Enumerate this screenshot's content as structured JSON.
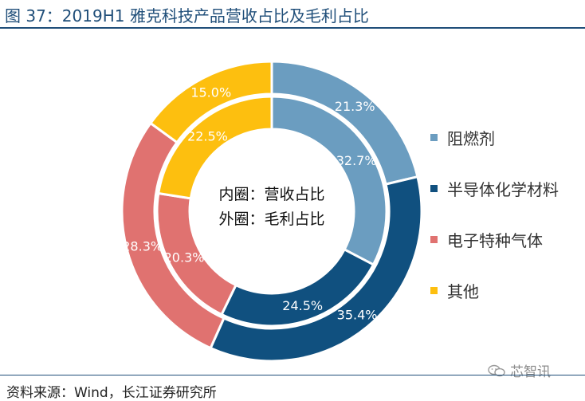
{
  "header": {
    "title": "图 37：2019H1 雅克科技产品营收占比及毛利占比"
  },
  "footer": {
    "source": "资料来源：Wind，长江证券研究所",
    "watermark": "芯智讯"
  },
  "chart_data": {
    "type": "pie",
    "subtype": "double-donut",
    "categories": [
      "阻燃剂",
      "半导体化学材料",
      "电子特种气体",
      "其他"
    ],
    "colors": [
      "#6b9dc0",
      "#10507f",
      "#e07270",
      "#fdbf0f"
    ],
    "series": [
      {
        "name": "营收占比",
        "ring": "inner",
        "values": [
          32.7,
          24.5,
          20.3,
          22.5
        ],
        "labels": [
          "32.7%",
          "24.5%",
          "20.3%",
          "22.5%"
        ]
      },
      {
        "name": "毛利占比",
        "ring": "outer",
        "values": [
          21.3,
          35.4,
          28.3,
          15.0
        ],
        "labels": [
          "21.3%",
          "35.4%",
          "28.3%",
          "15.0%"
        ]
      }
    ],
    "center_text": [
      "内圈：营收占比",
      "外圈：毛利占比"
    ],
    "legend_position": "right"
  }
}
